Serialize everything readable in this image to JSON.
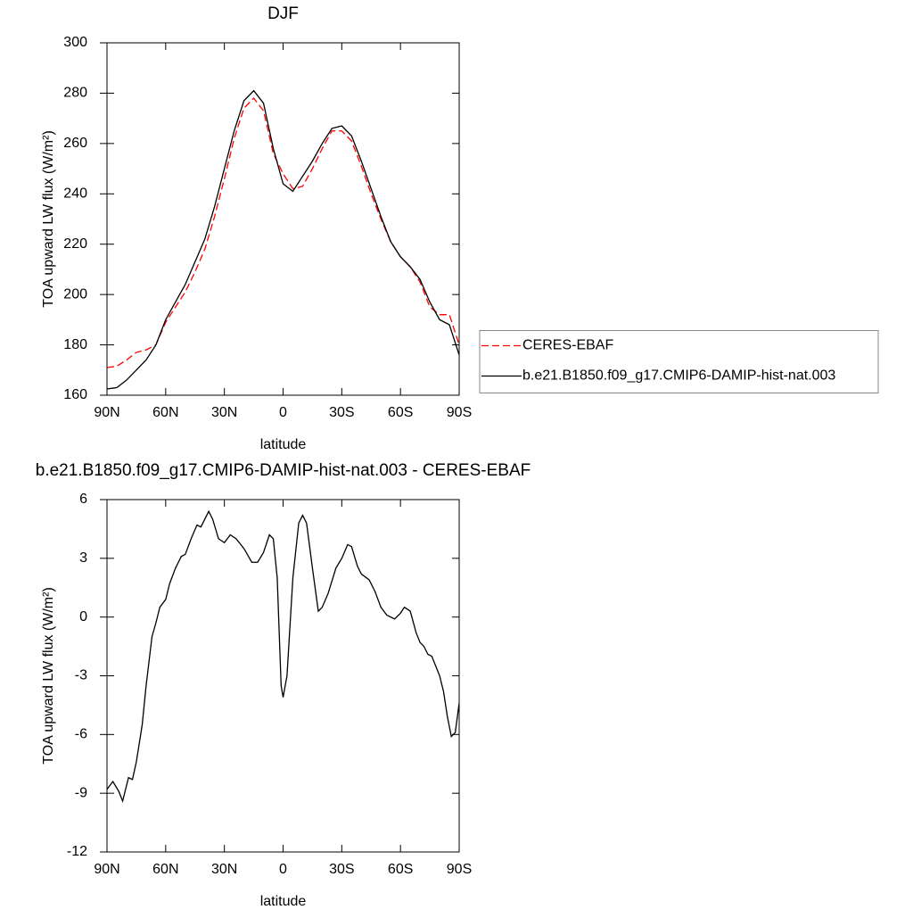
{
  "chart_data": [
    {
      "type": "line",
      "title": "DJF",
      "xlabel": "latitude",
      "ylabel": "TOA upward LW flux (W/m²)",
      "x": [
        90,
        85,
        80,
        75,
        70,
        65,
        60,
        55,
        50,
        45,
        40,
        35,
        30,
        25,
        20,
        15,
        10,
        5,
        0,
        -5,
        -10,
        -15,
        -20,
        -25,
        -30,
        -35,
        -40,
        -45,
        -50,
        -55,
        -60,
        -65,
        -70,
        -75,
        -80,
        -85,
        -90
      ],
      "xlim": [
        90,
        -90
      ],
      "xticks": [
        {
          "value": 90,
          "label": "90N"
        },
        {
          "value": 60,
          "label": "60N"
        },
        {
          "value": 30,
          "label": "30N"
        },
        0,
        {
          "value": -30,
          "label": "30S"
        },
        {
          "value": -60,
          "label": "60S"
        },
        {
          "value": -90,
          "label": "90S"
        }
      ],
      "ylim": [
        160,
        300
      ],
      "yticks": [
        160,
        180,
        200,
        220,
        240,
        260,
        280,
        300
      ],
      "legend": "right",
      "series": [
        {
          "name": "CERES-EBAF",
          "color": "#ff0000",
          "line_style": "dashed",
          "values": [
            171,
            171.5,
            174,
            177,
            178,
            180,
            189,
            195,
            201,
            209,
            218,
            231,
            246,
            262,
            274,
            278,
            273,
            256,
            248,
            242,
            243,
            250,
            258,
            265,
            265,
            261,
            251,
            240,
            230,
            221,
            215,
            211,
            205,
            195,
            192,
            192,
            180
          ]
        },
        {
          "name": "b.e21.B1850.f09_g17.CMIP6-DAMIP-hist-nat.003",
          "color": "#000000",
          "line_style": "solid",
          "values": [
            162.5,
            163,
            166,
            170,
            174,
            180,
            190,
            197,
            204,
            213,
            222,
            235,
            250,
            265,
            277,
            281,
            276,
            258,
            244,
            241,
            247,
            253,
            260,
            266,
            267,
            263,
            253,
            242,
            231,
            221,
            215,
            211,
            206,
            197,
            190,
            188,
            176
          ]
        }
      ]
    },
    {
      "type": "line",
      "title": "b.e21.B1850.f09_g17.CMIP6-DAMIP-hist-nat.003 - CERES-EBAF",
      "xlabel": "latitude",
      "ylabel": "TOA upward LW flux (W/m²)",
      "x": [
        90,
        87,
        84,
        82,
        79,
        77,
        75,
        72,
        70,
        67,
        65,
        63,
        60,
        58,
        55,
        52,
        50,
        47,
        44,
        42,
        40,
        38,
        36,
        33,
        30,
        27,
        24,
        20,
        16,
        13,
        10,
        7,
        5,
        3,
        1,
        0,
        -2,
        -5,
        -8,
        -10,
        -12,
        -15,
        -18,
        -20,
        -23,
        -27,
        -30,
        -33,
        -35,
        -38,
        -40,
        -44,
        -47,
        -50,
        -53,
        -57,
        -60,
        -62,
        -65,
        -68,
        -70,
        -72,
        -74,
        -76,
        -78,
        -80,
        -82,
        -84,
        -86,
        -88,
        -90
      ],
      "xlim": [
        90,
        -90
      ],
      "xticks": [
        {
          "value": 90,
          "label": "90N"
        },
        {
          "value": 60,
          "label": "60N"
        },
        {
          "value": 30,
          "label": "30N"
        },
        0,
        {
          "value": -30,
          "label": "30S"
        },
        {
          "value": -60,
          "label": "60S"
        },
        {
          "value": -90,
          "label": "90S"
        }
      ],
      "ylim": [
        -12,
        6
      ],
      "yticks": [
        -12,
        -9,
        -6,
        -3,
        0,
        3,
        6
      ],
      "series": [
        {
          "color": "#000000",
          "line_style": "solid",
          "values": [
            -8.8,
            -8.4,
            -8.9,
            -9.4,
            -8.2,
            -8.3,
            -7.4,
            -5.5,
            -3.5,
            -1.0,
            -0.3,
            0.5,
            0.9,
            1.7,
            2.5,
            3.1,
            3.2,
            4.0,
            4.7,
            4.6,
            5.0,
            5.4,
            5.0,
            4.0,
            3.8,
            4.2,
            4.0,
            3.5,
            2.8,
            2.8,
            3.3,
            4.2,
            4.0,
            2.0,
            -3.5,
            -4.1,
            -3.0,
            2.0,
            4.8,
            5.2,
            4.8,
            2.5,
            0.3,
            0.5,
            1.2,
            2.5,
            3.0,
            3.7,
            3.6,
            2.6,
            2.2,
            1.9,
            1.3,
            0.5,
            0.1,
            -0.1,
            0.2,
            0.5,
            0.3,
            -0.8,
            -1.3,
            -1.5,
            -1.9,
            -2.0,
            -2.5,
            -3.0,
            -3.8,
            -5.1,
            -6.1,
            -5.9,
            -4.4
          ]
        }
      ]
    }
  ]
}
